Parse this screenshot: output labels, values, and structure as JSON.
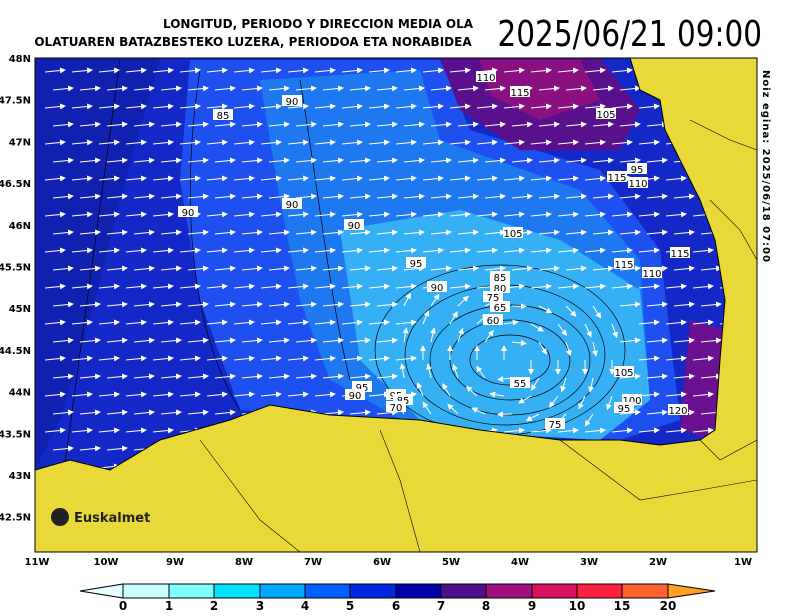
{
  "header": {
    "title_line1": "LONGITUD, PERIODO Y DIRECCION MEDIA OLA",
    "title_line2": "OLATUAREN BATAZBESTEKO LUZERA, PERIODOA  ETA NORABIDEA",
    "datetime": "2025/06/21 09:00"
  },
  "side_note": "Noiz egina: 2025/06/18 07:00",
  "logo": "Euskalmet",
  "lat_labels": [
    "48N",
    "47.5N",
    "47N",
    "46.5N",
    "46N",
    "45.5N",
    "45N",
    "44.5N",
    "44N",
    "43.5N",
    "43N",
    "42.5N"
  ],
  "lon_labels": [
    "11W",
    "10W",
    "9W",
    "8W",
    "7W",
    "6W",
    "5W",
    "4W",
    "3W",
    "2W",
    "1W"
  ],
  "contour_labels": [
    "110",
    "115",
    "105",
    "90",
    "85",
    "95",
    "115",
    "110",
    "90",
    "90",
    "90",
    "105",
    "95",
    "115",
    "110",
    "115",
    "90",
    "85",
    "80",
    "75",
    "65",
    "60",
    "95",
    "105",
    "55",
    "95",
    "90",
    "85",
    "70",
    "100",
    "95",
    "120",
    "75"
  ],
  "legend": {
    "labels": [
      "0",
      "1",
      "2",
      "3",
      "4",
      "5",
      "6",
      "7",
      "8",
      "9",
      "10",
      "15",
      "20"
    ],
    "colors": [
      "#e8ffff",
      "#c8ffff",
      "#80ffff",
      "#00e0ff",
      "#00a8ff",
      "#0060ff",
      "#0028e0",
      "#0000a8",
      "#50108c",
      "#a0107c",
      "#d81060",
      "#ff2040",
      "#ff6030",
      "#ffa020"
    ]
  }
}
